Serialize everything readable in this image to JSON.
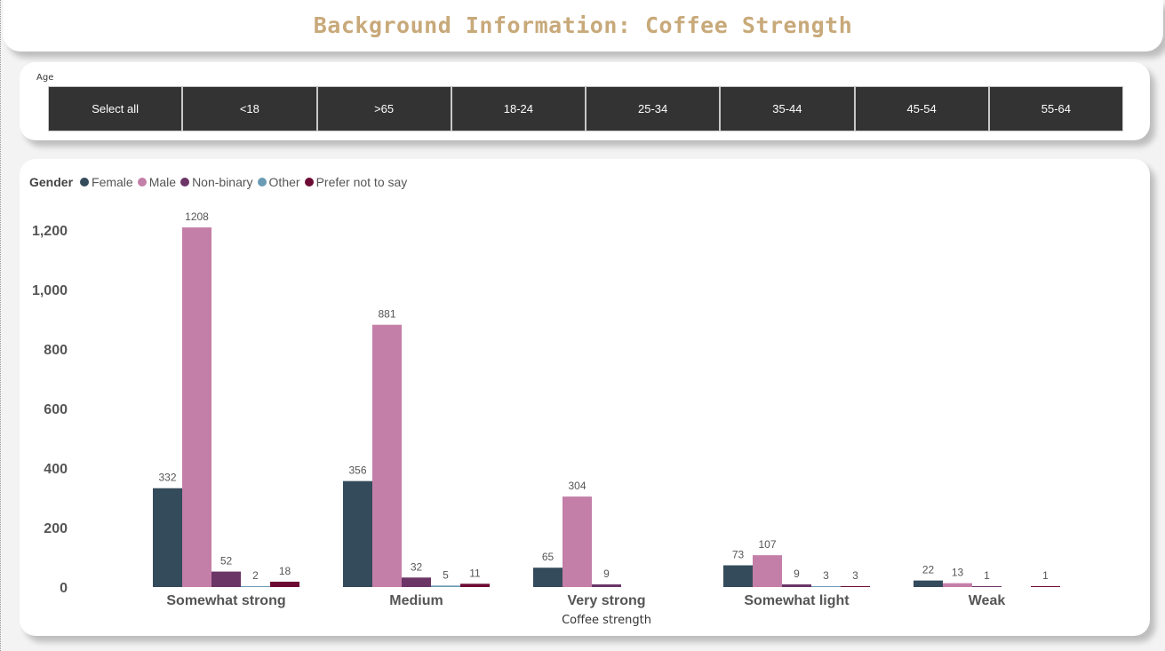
{
  "page_title": "Background Information: Coffee Strength",
  "age_filter": {
    "label": "Age",
    "options": [
      "Select all",
      "<18",
      ">65",
      "18-24",
      "25-34",
      "35-44",
      "45-54",
      "55-64"
    ]
  },
  "chart_data": {
    "type": "bar",
    "legend_title": "Gender",
    "legend_position": "top-left",
    "xlabel": "Coffee strength",
    "ylabel": "",
    "ylim": [
      0,
      1250
    ],
    "yticks": [
      0,
      200,
      400,
      600,
      800,
      1000,
      1200
    ],
    "ytick_labels": [
      "0",
      "200",
      "400",
      "600",
      "800",
      "1,000",
      "1,200"
    ],
    "grid": false,
    "categories": [
      "Somewhat strong",
      "Medium",
      "Very strong",
      "Somewhat light",
      "Weak"
    ],
    "series": [
      {
        "name": "Female",
        "color": "#344b5b",
        "values": [
          332,
          356,
          65,
          73,
          22
        ]
      },
      {
        "name": "Male",
        "color": "#c47fa8",
        "values": [
          1208,
          881,
          304,
          107,
          13
        ]
      },
      {
        "name": "Non-binary",
        "color": "#6b3566",
        "values": [
          52,
          32,
          9,
          9,
          1
        ]
      },
      {
        "name": "Other",
        "color": "#6b9bb5",
        "values": [
          2,
          5,
          null,
          3,
          null
        ]
      },
      {
        "name": "Prefer not to say",
        "color": "#6e0b34",
        "values": [
          18,
          11,
          null,
          3,
          1
        ]
      }
    ]
  }
}
